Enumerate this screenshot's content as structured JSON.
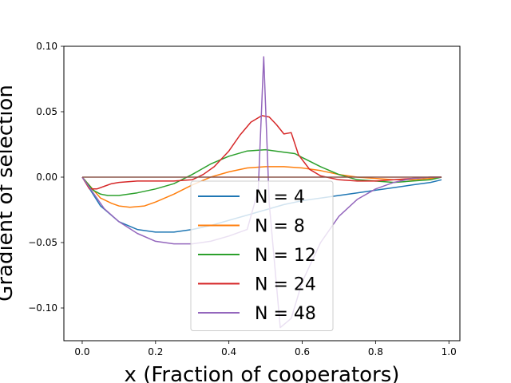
{
  "chart_data": {
    "type": "line",
    "xlabel": "x (Fraction of cooperators)",
    "ylabel": "Gradient of selection",
    "xlim": [
      -0.05,
      1.03
    ],
    "ylim": [
      -0.125,
      0.1
    ],
    "xticks": [
      "0.0",
      "0.2",
      "0.4",
      "0.6",
      "0.8",
      "1.0"
    ],
    "yticks": [
      "0.10",
      "0.05",
      "0.00",
      "−0.05",
      "−0.10"
    ],
    "xtick_values": [
      0,
      0.2,
      0.4,
      0.6,
      0.8,
      1.0
    ],
    "ytick_values": [
      0.1,
      0.05,
      0,
      -0.05,
      -0.1
    ],
    "grid": false,
    "legend_position": "lower-center",
    "series": [
      {
        "name": "N = 4",
        "color": "#1f77b4",
        "x": [
          0,
          0.05,
          0.1,
          0.15,
          0.2,
          0.25,
          0.3,
          0.35,
          0.4,
          0.45,
          0.5,
          0.55,
          0.6,
          0.65,
          0.7,
          0.75,
          0.8,
          0.85,
          0.9,
          0.95,
          0.98
        ],
        "y": [
          0,
          -0.022,
          -0.034,
          -0.04,
          -0.042,
          -0.042,
          -0.04,
          -0.037,
          -0.033,
          -0.029,
          -0.025,
          -0.021,
          -0.018,
          -0.016,
          -0.014,
          -0.012,
          -0.01,
          -0.008,
          -0.006,
          -0.004,
          -0.002
        ]
      },
      {
        "name": "N = 8",
        "color": "#ff7f0e",
        "x": [
          0,
          0.05,
          0.08,
          0.1,
          0.13,
          0.17,
          0.2,
          0.25,
          0.3,
          0.35,
          0.4,
          0.45,
          0.5,
          0.55,
          0.6,
          0.65,
          0.7,
          0.75,
          0.8,
          0.85,
          0.9,
          0.95,
          0.98
        ],
        "y": [
          0,
          -0.016,
          -0.02,
          -0.022,
          -0.023,
          -0.022,
          -0.019,
          -0.013,
          -0.006,
          0.0,
          0.004,
          0.007,
          0.008,
          0.008,
          0.007,
          0.005,
          0.002,
          0.0,
          -0.001,
          -0.002,
          -0.002,
          -0.001,
          0
        ]
      },
      {
        "name": "N = 12",
        "color": "#2ca02c",
        "x": [
          0,
          0.03,
          0.05,
          0.07,
          0.1,
          0.15,
          0.2,
          0.25,
          0.3,
          0.35,
          0.4,
          0.45,
          0.5,
          0.55,
          0.58,
          0.6,
          0.65,
          0.7,
          0.75,
          0.8,
          0.85,
          0.9,
          0.95,
          0.98
        ],
        "y": [
          0,
          -0.01,
          -0.013,
          -0.014,
          -0.014,
          -0.012,
          -0.009,
          -0.005,
          0.002,
          0.01,
          0.016,
          0.02,
          0.021,
          0.019,
          0.018,
          0.015,
          0.008,
          0.002,
          -0.002,
          -0.003,
          -0.004,
          -0.003,
          -0.002,
          0
        ]
      },
      {
        "name": "N = 24",
        "color": "#d62728",
        "x": [
          0,
          0.02,
          0.04,
          0.06,
          0.08,
          0.1,
          0.15,
          0.2,
          0.25,
          0.3,
          0.33,
          0.36,
          0.4,
          0.43,
          0.46,
          0.49,
          0.51,
          0.53,
          0.55,
          0.57,
          0.59,
          0.62,
          0.65,
          0.7,
          0.75,
          0.8,
          0.85,
          0.9,
          0.95,
          0.98
        ],
        "y": [
          0,
          -0.009,
          -0.009,
          -0.007,
          -0.005,
          -0.004,
          -0.003,
          -0.003,
          -0.003,
          -0.002,
          0.002,
          0.008,
          0.02,
          0.032,
          0.042,
          0.047,
          0.046,
          0.04,
          0.033,
          0.034,
          0.017,
          0.006,
          0.001,
          -0.002,
          -0.003,
          -0.003,
          -0.002,
          -0.001,
          0,
          0
        ]
      },
      {
        "name": "N = 48",
        "color": "#9467bd",
        "x": [
          0,
          0.03,
          0.06,
          0.1,
          0.15,
          0.2,
          0.25,
          0.3,
          0.35,
          0.4,
          0.45,
          0.48,
          0.495,
          0.51,
          0.54,
          0.57,
          0.6,
          0.65,
          0.7,
          0.75,
          0.8,
          0.85,
          0.9,
          0.95,
          0.98
        ],
        "y": [
          0,
          -0.012,
          -0.024,
          -0.034,
          -0.043,
          -0.049,
          -0.051,
          -0.051,
          -0.049,
          -0.045,
          -0.04,
          -0.01,
          0.092,
          -0.02,
          -0.115,
          -0.108,
          -0.08,
          -0.05,
          -0.03,
          -0.017,
          -0.009,
          -0.004,
          -0.001,
          0,
          0
        ]
      },
      {
        "name": "",
        "color": "#8c564b",
        "x": [
          0,
          0.98
        ],
        "y": [
          0,
          0
        ]
      }
    ]
  }
}
